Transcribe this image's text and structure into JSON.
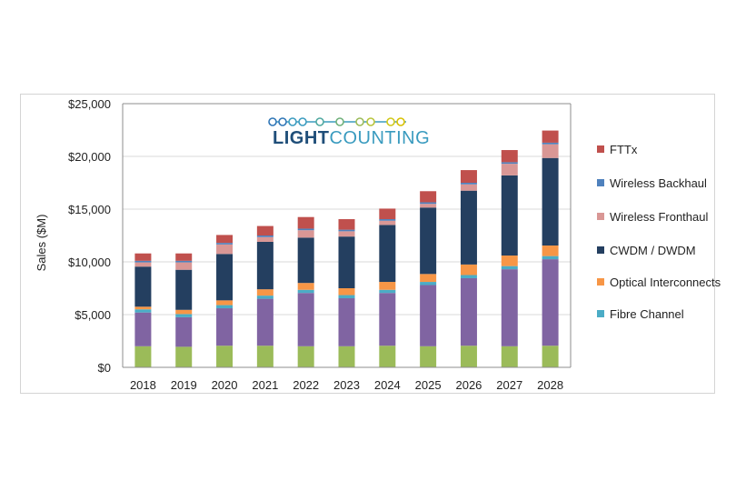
{
  "logo": {
    "text_bold": "LIGHT",
    "text_light": "COUNTING"
  },
  "chart_data": {
    "type": "bar",
    "stacked": true,
    "ylabel": "Sales ($M)",
    "ylim": [
      0,
      25000
    ],
    "yticks": [
      0,
      5000,
      10000,
      15000,
      20000,
      25000
    ],
    "ytick_labels": [
      "$0",
      "$5,000",
      "$10,000",
      "$15,000",
      "$20,000",
      "$25,000"
    ],
    "grid": true,
    "legend_placement": "right",
    "categories": [
      "2018",
      "2019",
      "2020",
      "2021",
      "2022",
      "2023",
      "2024",
      "2025",
      "2026",
      "2027",
      "2028"
    ],
    "series": [
      {
        "name": "",
        "color": "#9bbb59",
        "values": [
          2000,
          1950,
          2050,
          2050,
          2000,
          2000,
          2050,
          2000,
          2050,
          2000,
          2050
        ]
      },
      {
        "name": "",
        "color": "#8064a2",
        "values": [
          3200,
          2800,
          3550,
          4450,
          5050,
          4550,
          5000,
          5800,
          6400,
          7300,
          8200
        ]
      },
      {
        "name": "Fibre Channel",
        "color": "#4bacc6",
        "values": [
          300,
          300,
          300,
          300,
          300,
          300,
          300,
          300,
          300,
          300,
          300
        ]
      },
      {
        "name": "Optical Interconnects",
        "color": "#f79646",
        "values": [
          250,
          400,
          450,
          600,
          650,
          650,
          750,
          750,
          1000,
          1000,
          1000
        ]
      },
      {
        "name": "CWDM / DWDM",
        "color": "#243f60",
        "values": [
          3800,
          3800,
          4400,
          4500,
          4300,
          4900,
          5400,
          6300,
          7000,
          7600,
          8300
        ]
      },
      {
        "name": "Wireless Fronthaul",
        "color": "#d99795",
        "values": [
          400,
          700,
          900,
          450,
          700,
          500,
          400,
          350,
          600,
          1100,
          1300
        ]
      },
      {
        "name": "Wireless Backhaul",
        "color": "#4f81bd",
        "values": [
          150,
          150,
          150,
          150,
          150,
          150,
          150,
          150,
          150,
          150,
          150
        ]
      },
      {
        "name": "FTTx",
        "color": "#c0504d",
        "values": [
          700,
          700,
          750,
          900,
          1100,
          1000,
          1000,
          1050,
          1200,
          1150,
          1150
        ]
      }
    ],
    "legend_order": [
      "FTTx",
      "Wireless Backhaul",
      "Wireless Fronthaul",
      "CWDM / DWDM",
      "Optical Interconnects",
      "Fibre Channel"
    ]
  }
}
